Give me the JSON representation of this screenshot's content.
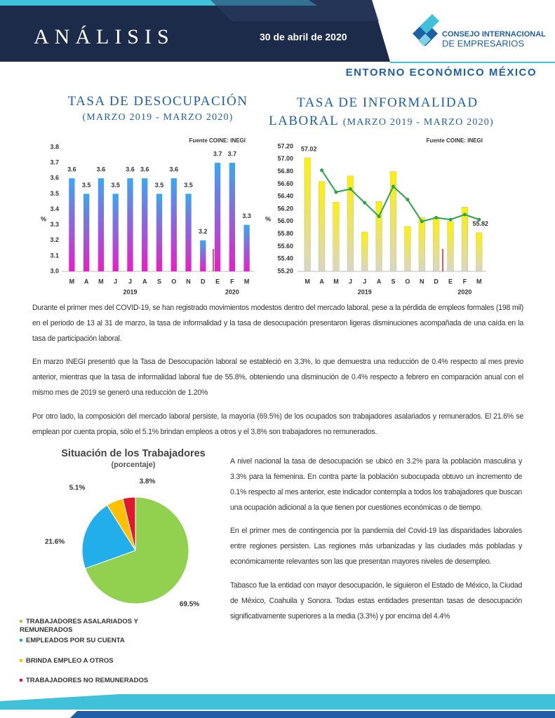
{
  "header": {
    "title": "ANÁLISIS",
    "date": "30 de abril de 2020",
    "logo_line1": "CONSEJO INTERNACIONAL",
    "logo_line2": "DE EMPRESARIOS",
    "section": "ENTORNO ECONÓMICO MÉXICO"
  },
  "chart_data": [
    {
      "type": "bar",
      "title": "TASA DE DESOCUPACIÓN",
      "subtitle": "(MARZO 2019 - MARZO 2020)",
      "source": "Fuente COINE: INEGI",
      "y_label": "%",
      "categories": [
        "M",
        "A",
        "M",
        "J",
        "J",
        "A",
        "S",
        "O",
        "N",
        "D",
        "E",
        "F",
        "M"
      ],
      "year_labels": [
        "2019",
        "2020"
      ],
      "series": [
        {
          "type": "bar",
          "gradient": [
            "#3aa8f0",
            "#e81ec8"
          ],
          "values": [
            3.6,
            3.5,
            3.6,
            3.5,
            3.6,
            3.6,
            3.5,
            3.6,
            3.5,
            3.2,
            3.7,
            3.7,
            3.3
          ]
        }
      ],
      "data_labels": true,
      "ylim": [
        3.0,
        3.8
      ],
      "yticks": [
        {
          "value": 3,
          "label": "3.0"
        },
        3.1,
        3.2,
        3.3,
        3.4,
        3.5,
        3.6,
        3.7,
        3.8
      ]
    },
    {
      "type": "bar",
      "title": "TASA DE INFORMALIDAD LABORAL",
      "subtitle": "(MARZO 2019 - MARZO 2020)",
      "source": "Fuente COINE: INEGI",
      "y_label": "%",
      "categories": [
        "M",
        "A",
        "M",
        "J",
        "J",
        "A",
        "S",
        "O",
        "N",
        "D",
        "E",
        "F",
        "M"
      ],
      "year_labels": [
        "2019",
        "2020"
      ],
      "series": [
        {
          "type": "bar",
          "gradient": [
            "#fff200",
            "#d8d6c8"
          ],
          "values": [
            57.02,
            56.64,
            56.31,
            56.73,
            55.83,
            56.32,
            56.8,
            55.92,
            56.06,
            56.07,
            56.0,
            56.23,
            55.82
          ],
          "value_labels": [
            "57.02",
            null,
            null,
            null,
            null,
            null,
            null,
            null,
            null,
            null,
            null,
            null,
            "55.82"
          ]
        },
        {
          "type": "line",
          "color": "#2aa64a",
          "values": [
            null,
            56.82,
            56.47,
            56.52,
            56.3,
            56.08,
            56.56,
            56.35,
            56.0,
            56.06,
            56.03,
            56.11,
            56.03
          ]
        }
      ],
      "ylim": [
        55.2,
        57.2
      ],
      "yticks": [
        {
          "value": 55.2,
          "label": "55.20"
        },
        {
          "value": 55.4,
          "label": "55.40"
        },
        {
          "value": 55.6,
          "label": "55.60"
        },
        {
          "value": 55.8,
          "label": "55.80"
        },
        {
          "value": 56,
          "label": "56.00"
        },
        {
          "value": 56.2,
          "label": "56.20"
        },
        {
          "value": 56.4,
          "label": "56.40"
        },
        {
          "value": 56.6,
          "label": "56.60"
        },
        {
          "value": 56.8,
          "label": "56.80"
        },
        {
          "value": 57,
          "label": "57.00"
        },
        {
          "value": 57.2,
          "label": "57.20"
        }
      ]
    },
    {
      "type": "pie",
      "title": "Situación de los Trabajadores",
      "subtitle": "(porcentaje)",
      "categories": [
        "TRABAJADORES ASALARIADOS Y REMUNERADOS",
        "EMPLEADOS POR SU CUENTA",
        "BRINDA EMPLEO A OTROS",
        "TRABAJADORES NO REMUNERADOS"
      ],
      "values": [
        69.5,
        21.6,
        5.1,
        3.8
      ],
      "value_labels": [
        "69.5%",
        "21.6%",
        "5.1%",
        "3.8%"
      ],
      "colors": [
        "#92d050",
        "#22aeea",
        "#ffc000",
        "#e0182d"
      ]
    }
  ],
  "paragraphs": [
    "Durante el primer mes del COVID-19, se han registrado movimientos modestos dentro del mercado laboral, pese a la pérdida de empleos formales (198 mil) en el periodo de 13 al 31 de marzo, la tasa de informalidad y la tasa de desocupación presentaron ligeras disminuciones acompañada de una caída en la tasa de participación laboral.",
    "En marzo INEGI presentó que la Tasa de Desocupación laboral se estableció en 3.3%, lo que demuestra una reducción de 0.4% respecto al mes previo anterior, mientras que la tasa de informalidad laboral fue de 55.8%, obteniendo una disminución de 0.4% respecto a febrero en comparación anual con el mismo mes de 2019 se generó una reducción de 1.20%",
    "Por otro lado, la composición del mercado laboral persiste, la mayoría (69.5%) de los ocupados son trabajadores asalariados y remunerados. El 21.6% se emplean por cuenta propia, sólo el 5.1% brindan empleos a otros y el 3.8% son trabajadores no remunerados."
  ],
  "side_paragraphs": [
    "A nivel nacional la tasa de desocupación se ubicó en 3.2% para la población masculina y 3.3% para la femenina.  En contra parte la población subocupada obtuvo un incremento de 0.1% respecto al mes anterior, este indicador contempla a todos los trabajadores que buscan una ocupación adicional a la que tienen por cuestiones económicas o de tiempo.",
    "En el primer mes de contingencia por la pandemia del Covid-19 las disparidades laborales entre regiones persisten. Las regiones más urbanizadas y las ciudades más pobladas y económicamente relevantes son las que presentan mayores niveles de desempleo.",
    "Tabasco fue la entidad con mayor desocupación, le siguieron el Estado de México, la Ciudad de México, Coahuila y Sonora. Todas estas entidades presentan tasas de desocupación significativamente superiores a la media (3.3%) y por encima del 4.4%"
  ]
}
